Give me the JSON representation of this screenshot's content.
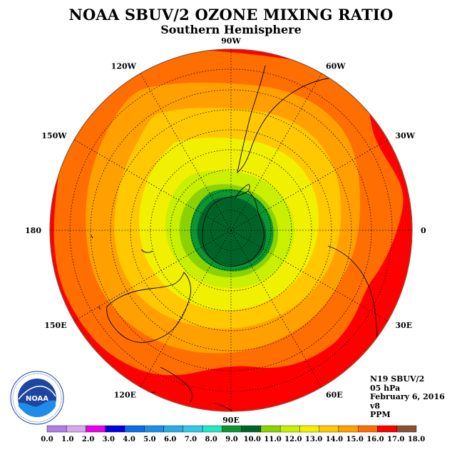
{
  "title": "NOAA SBUV/2 OZONE MIXING RATIO",
  "subtitle": "Southern Hemisphere",
  "info": {
    "satellite": "N19 SBUV/2",
    "pressure": "05 hPa",
    "date": "February 6, 2016",
    "version": "v8",
    "units": "PPM"
  },
  "logo": {
    "text": "NOAA",
    "icon": "noaa-logo-icon"
  },
  "longitude_labels": [
    {
      "text": "0",
      "angle": 0
    },
    {
      "text": "30E",
      "angle": 30
    },
    {
      "text": "60E",
      "angle": 60
    },
    {
      "text": "90E",
      "angle": 90
    },
    {
      "text": "120E",
      "angle": 120
    },
    {
      "text": "150E",
      "angle": 150
    },
    {
      "text": "180",
      "angle": 180
    },
    {
      "text": "150W",
      "angle": 210
    },
    {
      "text": "120W",
      "angle": 240
    },
    {
      "text": "90W",
      "angle": 270
    },
    {
      "text": "60W",
      "angle": 300
    },
    {
      "text": "30W",
      "angle": 330
    }
  ],
  "colorbar": {
    "labels": [
      "0.0",
      "1.0",
      "2.0",
      "3.0",
      "4.0",
      "5.0",
      "6.0",
      "7.0",
      "8.0",
      "9.0",
      "10.0",
      "11.0",
      "12.0",
      "13.0",
      "14.0",
      "15.0",
      "16.0",
      "17.0",
      "18.0"
    ],
    "colors": [
      "#b07ce6",
      "#d8a8ee",
      "#e800e8",
      "#0000e0",
      "#0a6ee6",
      "#1e8ce8",
      "#2aaae6",
      "#32c8e8",
      "#22e8c4",
      "#0a9632",
      "#006428",
      "#8cd200",
      "#c8f000",
      "#f0f000",
      "#ffc800",
      "#ffa000",
      "#ff6e00",
      "#ff0000",
      "#8c5032"
    ]
  }
}
